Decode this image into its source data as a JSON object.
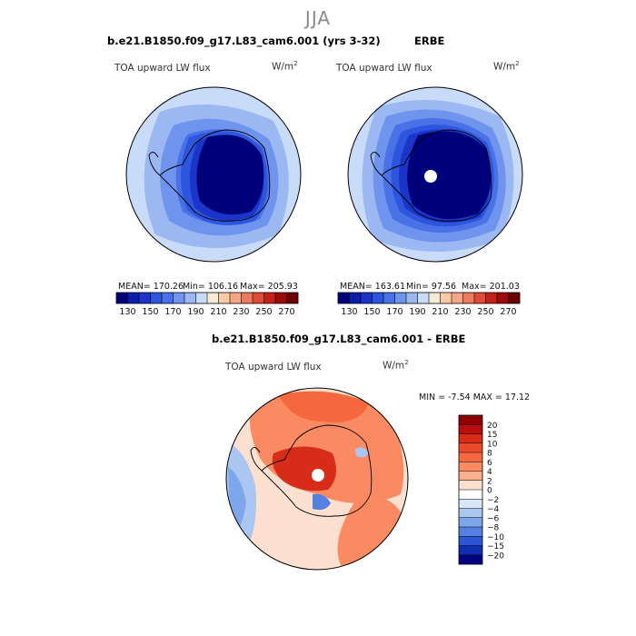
{
  "season": "JJA",
  "variable": "TOA upward LW flux",
  "units_base": "W/m",
  "units_exp": "2",
  "chart_data": [
    {
      "type": "heatmap",
      "projection": "south polar stereographic",
      "title": "b.e21.B1850.f09_g17.L83_cam6.001 (yrs 3-32)",
      "subtitle": "TOA upward LW flux",
      "mean_label": "MEAN= 170.26",
      "min_label": "Min= 106.16",
      "max_label": "Max= 205.93",
      "mean": 170.26,
      "min": 106.16,
      "max": 205.93,
      "colorbar_levels": [
        130,
        140,
        150,
        160,
        170,
        180,
        190,
        200,
        210,
        220,
        230,
        240,
        250,
        260,
        270
      ],
      "colorbar_tick_labels": [
        "130",
        "150",
        "170",
        "190",
        "210",
        "230",
        "250",
        "270"
      ],
      "colorbar_colors": [
        "#00007a",
        "#0a1fa8",
        "#1a35c8",
        "#2e55dd",
        "#4a72e6",
        "#6f94ee",
        "#9bb8f3",
        "#c8dbf8",
        "#f8ead8",
        "#fccaa9",
        "#f7a586",
        "#ee7a5f",
        "#df4b35",
        "#c42218",
        "#9c0a0a",
        "#6a0000"
      ]
    },
    {
      "type": "heatmap",
      "projection": "south polar stereographic",
      "title": "ERBE",
      "subtitle": "TOA upward LW flux",
      "mean_label": "MEAN= 163.61",
      "min_label": "Min= 97.56",
      "max_label": "Max= 201.03",
      "mean": 163.61,
      "min": 97.56,
      "max": 201.03,
      "colorbar_levels": [
        130,
        140,
        150,
        160,
        170,
        180,
        190,
        200,
        210,
        220,
        230,
        240,
        250,
        260,
        270
      ],
      "colorbar_tick_labels": [
        "130",
        "150",
        "170",
        "190",
        "210",
        "230",
        "250",
        "270"
      ],
      "colorbar_colors": [
        "#00007a",
        "#0a1fa8",
        "#1a35c8",
        "#2e55dd",
        "#4a72e6",
        "#6f94ee",
        "#9bb8f3",
        "#c8dbf8",
        "#f8ead8",
        "#fccaa9",
        "#f7a586",
        "#ee7a5f",
        "#df4b35",
        "#c42218",
        "#9c0a0a",
        "#6a0000"
      ]
    },
    {
      "type": "heatmap",
      "projection": "south polar stereographic",
      "title": "b.e21.B1850.f09_g17.L83_cam6.001 - ERBE",
      "subtitle": "TOA upward LW flux",
      "minmax_label": "MIN =  -7.54 MAX =  17.12",
      "min": -7.54,
      "max": 17.12,
      "colorbar_levels": [
        -20,
        -15,
        -10,
        -8,
        -6,
        -4,
        -2,
        0,
        2,
        4,
        6,
        8,
        10,
        15,
        20
      ],
      "colorbar_tick_labels": [
        "20",
        "15",
        "10",
        "8",
        "6",
        "4",
        "2",
        "0",
        "−2",
        "−4",
        "−6",
        "−8",
        "−10",
        "−15",
        "−20"
      ],
      "colorbar_colors": [
        "#8e0000",
        "#b80e0e",
        "#d72d18",
        "#ea4a2a",
        "#f5673f",
        "#f98a62",
        "#fbaf8d",
        "#fde0cf",
        "#ffffff",
        "#d9e6f8",
        "#aac6f1",
        "#7ea6ea",
        "#5480e0",
        "#2c56d3",
        "#0f2fb0",
        "#000080"
      ]
    }
  ]
}
